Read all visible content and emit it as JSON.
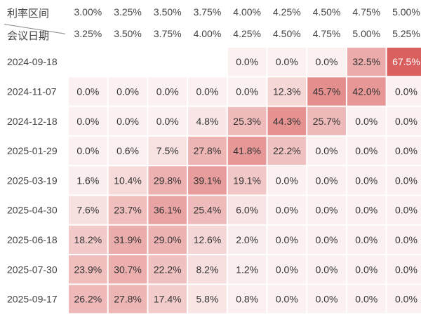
{
  "header": {
    "row_label": "利率区间",
    "col_label": "会议日期"
  },
  "chart_data": {
    "type": "heatmap",
    "x": [
      {
        "low": "3.00%",
        "high": "3.25%"
      },
      {
        "low": "3.25%",
        "high": "3.50%"
      },
      {
        "low": "3.50%",
        "high": "3.75%"
      },
      {
        "low": "3.75%",
        "high": "4.00%"
      },
      {
        "low": "4.00%",
        "high": "4.25%"
      },
      {
        "low": "4.25%",
        "high": "4.50%"
      },
      {
        "low": "4.50%",
        "high": "4.75%"
      },
      {
        "low": "4.75%",
        "high": "5.00%"
      },
      {
        "low": "5.00%",
        "high": "5.25%"
      }
    ],
    "y": [
      "2024-09-18",
      "2024-11-07",
      "2024-12-18",
      "2025-01-29",
      "2025-03-19",
      "2025-04-30",
      "2025-06-18",
      "2025-07-30",
      "2025-09-17"
    ],
    "values": [
      [
        null,
        null,
        null,
        null,
        0.0,
        0.0,
        0.0,
        32.5,
        67.5
      ],
      [
        0.0,
        0.0,
        0.0,
        0.0,
        0.0,
        12.3,
        45.7,
        42.0,
        0.0
      ],
      [
        0.0,
        0.0,
        0.0,
        4.8,
        25.3,
        44.3,
        25.7,
        0.0,
        0.0
      ],
      [
        0.0,
        0.6,
        7.5,
        27.8,
        41.8,
        22.2,
        0.0,
        0.0,
        0.0
      ],
      [
        1.6,
        10.4,
        29.8,
        39.1,
        19.1,
        0.0,
        0.0,
        0.0,
        0.0
      ],
      [
        7.6,
        23.7,
        36.1,
        25.4,
        6.0,
        0.0,
        0.0,
        0.0,
        0.0
      ],
      [
        18.2,
        31.9,
        29.0,
        12.6,
        2.0,
        0.0,
        0.0,
        0.0,
        0.0
      ],
      [
        23.9,
        30.7,
        22.2,
        8.2,
        1.2,
        0.0,
        0.0,
        0.0,
        0.0
      ],
      [
        26.2,
        27.8,
        17.4,
        5.8,
        0.8,
        0.0,
        0.0,
        0.0,
        0.0
      ]
    ],
    "unit": "%",
    "color_low": "#fbf1f1",
    "color_high": "#d9605e"
  }
}
